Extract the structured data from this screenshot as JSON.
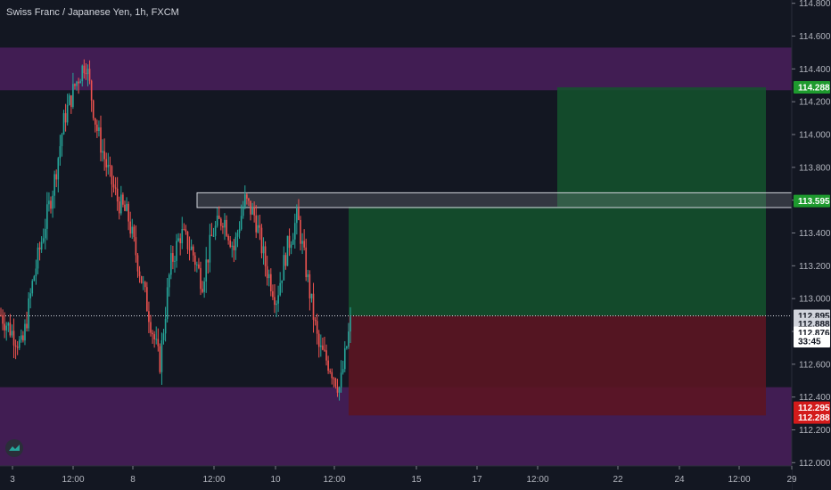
{
  "header": {
    "title": "Swiss Franc / Japanese Yen, 1h, FXCM"
  },
  "colors": {
    "background": "#131722",
    "up": "#26a69a",
    "down": "#ef5350",
    "zone": "#4a1e5c",
    "profit": "#14532d",
    "loss": "#5c1522",
    "grid_text": "#b2b5be",
    "tp_badge": "#1e9a2e",
    "sl_badge": "#d31b1b"
  },
  "chart_data": {
    "type": "candlestick",
    "title": "Swiss Franc / Japanese Yen, 1h, FXCM",
    "ylim": [
      111.98,
      114.82
    ],
    "y_ticks": [
      "114.800",
      "114.600",
      "114.400",
      "114.200",
      "114.000",
      "113.800",
      "113.600",
      "113.400",
      "113.200",
      "113.000",
      "112.800",
      "112.600",
      "112.400",
      "112.200",
      "112.000"
    ],
    "x_ticks": [
      "3",
      "12:00",
      "8",
      "12:00",
      "10",
      "12:00",
      "15",
      "17",
      "12:00",
      "22",
      "24",
      "12:00",
      "29"
    ],
    "series_close_path": [
      112.9,
      112.8,
      112.7,
      113.1,
      113.4,
      113.7,
      114.1,
      114.3,
      114.45,
      114.05,
      113.8,
      113.6,
      113.5,
      113.2,
      112.9,
      112.6,
      113.2,
      113.4,
      113.3,
      113.1,
      113.4,
      113.5,
      113.3,
      113.6,
      113.5,
      113.2,
      113.0,
      113.3,
      113.5,
      113.1,
      112.7,
      112.6,
      112.45,
      112.85
    ],
    "zones": [
      {
        "name": "upper-supply-zone",
        "from": 114.27,
        "to": 114.53
      },
      {
        "name": "lower-demand-zone",
        "from": 111.98,
        "to": 112.46
      }
    ],
    "resistance_box": {
      "from": 113.555,
      "to": 113.645
    },
    "long_position": {
      "entry": 112.895,
      "take_profit": 114.288,
      "stop_loss": 112.288
    },
    "price_labels": [
      {
        "label": "114.288",
        "kind": "take-profit"
      },
      {
        "label": "113.595",
        "kind": "resistance"
      },
      {
        "label": "112.895",
        "kind": "entry"
      },
      {
        "label": "112.888",
        "kind": "last-close"
      },
      {
        "label": "112.876",
        "kind": "current"
      },
      {
        "label": "33:45",
        "kind": "countdown"
      },
      {
        "label": "112.295",
        "kind": "stop"
      },
      {
        "label": "112.288",
        "kind": "stop"
      }
    ]
  }
}
